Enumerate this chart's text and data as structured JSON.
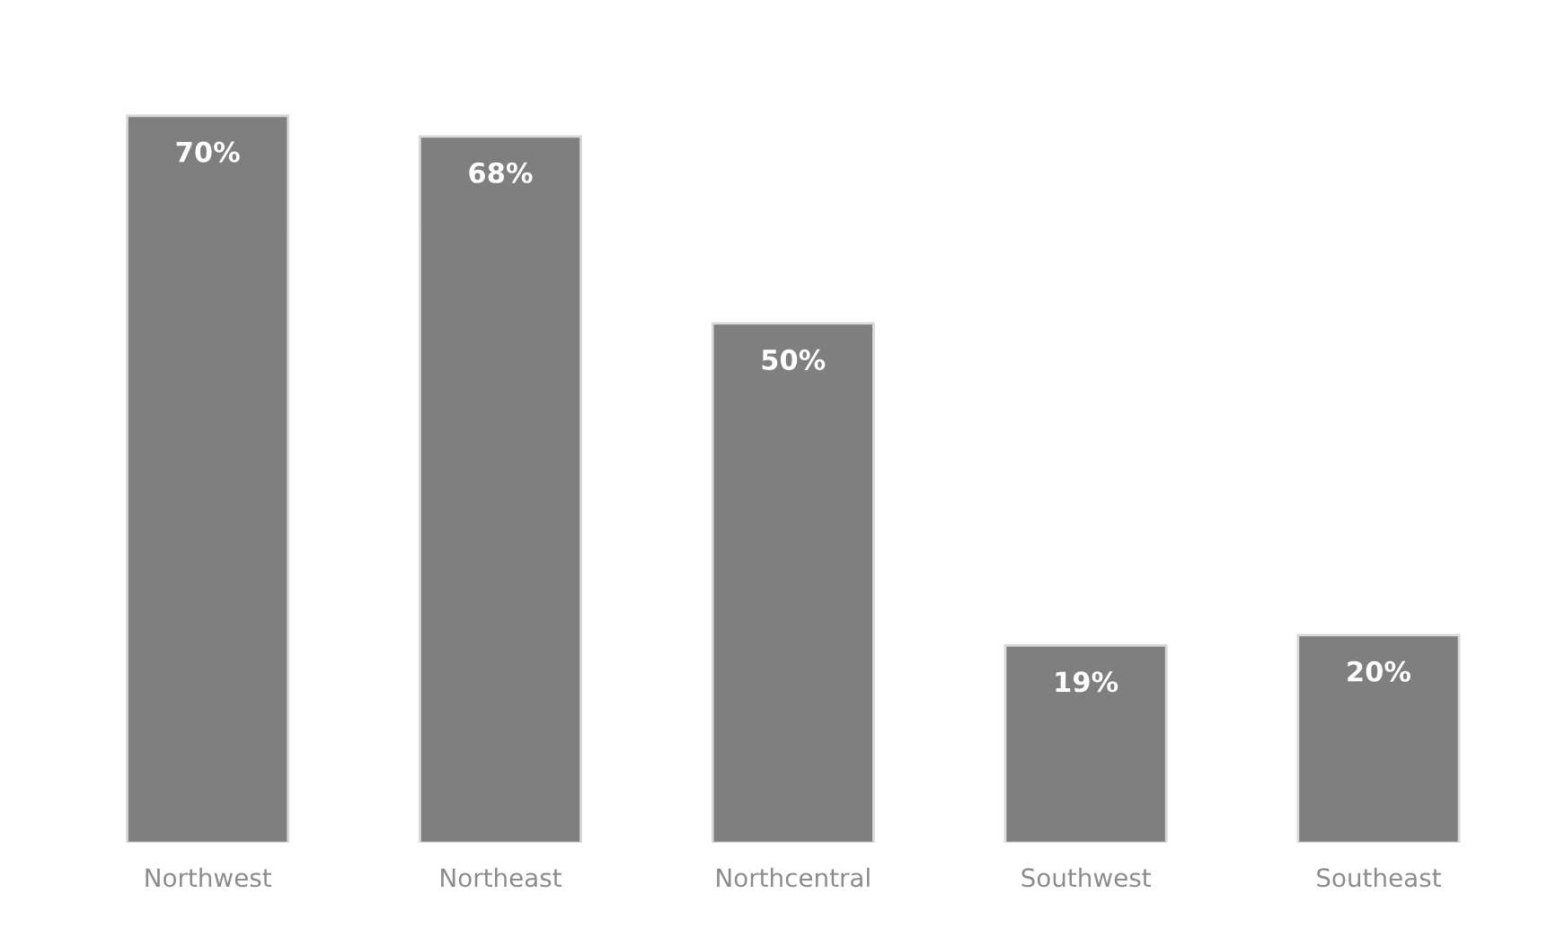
{
  "chart_data": {
    "type": "bar",
    "categories": [
      "Northwest",
      "Northeast",
      "Northcentral",
      "Southwest",
      "Southeast"
    ],
    "values": [
      70,
      68,
      50,
      19,
      20
    ],
    "value_labels": [
      "70%",
      "68%",
      "50%",
      "19%",
      "20%"
    ],
    "color": "#7f7f7f",
    "grid": false
  }
}
